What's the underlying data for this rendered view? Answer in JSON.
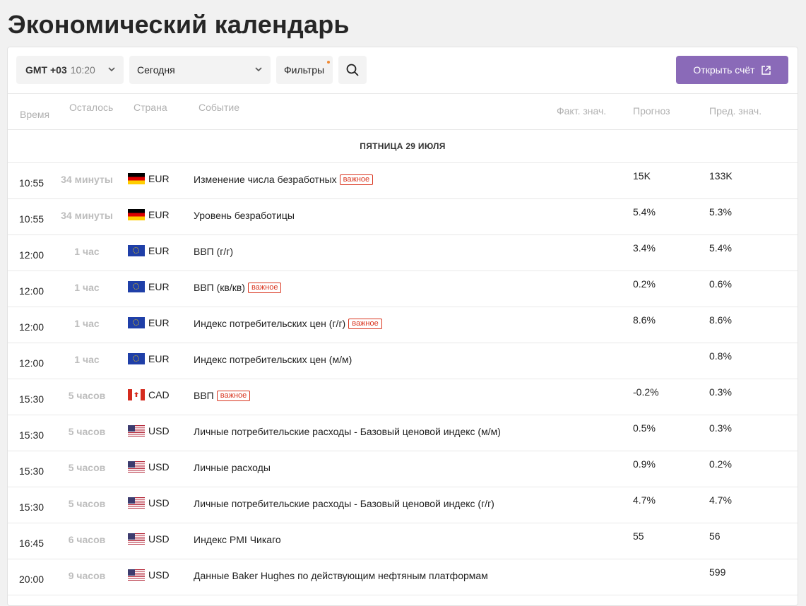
{
  "page_title": "Экономический календарь",
  "toolbar": {
    "tz_label": "GMT +03",
    "tz_time": "10:20",
    "date_value": "Сегодня",
    "filters_label": "Фильтры",
    "open_account_label": "Открыть счёт"
  },
  "columns": {
    "time": "Время",
    "left": "Осталось",
    "country": "Страна",
    "event": "Событие",
    "actual": "Факт. знач.",
    "forecast": "Прогноз",
    "previous": "Пред. знач."
  },
  "day_header": "ПЯТНИЦА 29 ИЮЛЯ",
  "important_label": "важное",
  "rows": [
    {
      "time": "10:55",
      "left": "34 минуты",
      "flag": "de",
      "currency": "EUR",
      "event": "Изменение числа безработных",
      "important": true,
      "actual": "",
      "forecast": "15K",
      "previous": "133K"
    },
    {
      "time": "10:55",
      "left": "34 минуты",
      "flag": "de",
      "currency": "EUR",
      "event": "Уровень безработицы",
      "important": false,
      "actual": "",
      "forecast": "5.4%",
      "previous": "5.3%"
    },
    {
      "time": "12:00",
      "left": "1 час",
      "flag": "eu",
      "currency": "EUR",
      "event": "ВВП (г/г)",
      "important": false,
      "actual": "",
      "forecast": "3.4%",
      "previous": "5.4%"
    },
    {
      "time": "12:00",
      "left": "1 час",
      "flag": "eu",
      "currency": "EUR",
      "event": "ВВП (кв/кв)",
      "important": true,
      "actual": "",
      "forecast": "0.2%",
      "previous": "0.6%"
    },
    {
      "time": "12:00",
      "left": "1 час",
      "flag": "eu",
      "currency": "EUR",
      "event": "Индекс потребительских цен (г/г)",
      "important": true,
      "actual": "",
      "forecast": "8.6%",
      "previous": "8.6%"
    },
    {
      "time": "12:00",
      "left": "1 час",
      "flag": "eu",
      "currency": "EUR",
      "event": "Индекс потребительских цен (м/м)",
      "important": false,
      "actual": "",
      "forecast": "",
      "previous": "0.8%"
    },
    {
      "time": "15:30",
      "left": "5 часов",
      "flag": "ca",
      "currency": "CAD",
      "event": "ВВП",
      "important": true,
      "actual": "",
      "forecast": "-0.2%",
      "previous": "0.3%"
    },
    {
      "time": "15:30",
      "left": "5 часов",
      "flag": "us",
      "currency": "USD",
      "event": "Личные потребительские расходы - Базовый ценовой индекс (м/м)",
      "important": false,
      "actual": "",
      "forecast": "0.5%",
      "previous": "0.3%"
    },
    {
      "time": "15:30",
      "left": "5 часов",
      "flag": "us",
      "currency": "USD",
      "event": "Личные расходы",
      "important": false,
      "actual": "",
      "forecast": "0.9%",
      "previous": "0.2%"
    },
    {
      "time": "15:30",
      "left": "5 часов",
      "flag": "us",
      "currency": "USD",
      "event": "Личные потребительские расходы - Базовый ценовой индекс (г/г)",
      "important": false,
      "actual": "",
      "forecast": "4.7%",
      "previous": "4.7%"
    },
    {
      "time": "16:45",
      "left": "6 часов",
      "flag": "us",
      "currency": "USD",
      "event": "Индекс PMI Чикаго",
      "important": false,
      "actual": "",
      "forecast": "55",
      "previous": "56"
    },
    {
      "time": "20:00",
      "left": "9 часов",
      "flag": "us",
      "currency": "USD",
      "event": "Данные Baker Hughes по действующим нефтяным платформам",
      "important": false,
      "actual": "",
      "forecast": "",
      "previous": "599"
    }
  ]
}
